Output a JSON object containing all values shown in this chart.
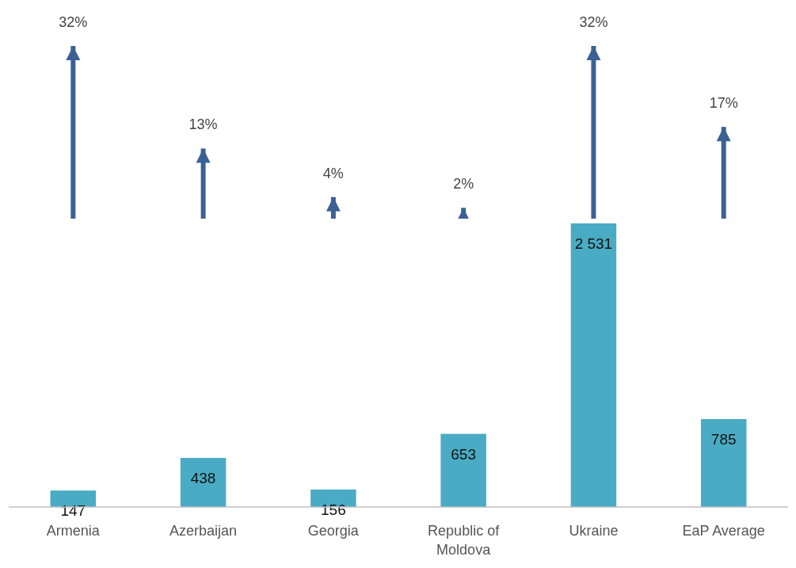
{
  "chart_data": [
    {
      "type": "bar",
      "categories": [
        null,
        null,
        null,
        null,
        null,
        null
      ],
      "tick_labels": false,
      "series": [
        {
          "color": "#3b6194",
          "values": [
            32,
            13,
            4,
            2,
            32,
            17
          ],
          "value_labels": [
            "32%",
            "13%",
            "4%",
            "2%",
            "32%",
            "17%"
          ]
        }
      ]
    },
    {
      "type": "bar",
      "categories": [
        "Armenia",
        "Azerbaijan",
        "Georgia",
        "Republic of Moldova",
        "Ukraine",
        "EaP Average"
      ],
      "series": [
        {
          "color": "#4aabc4",
          "values": [
            147,
            438,
            156,
            653,
            2531,
            785
          ],
          "value_labels": [
            "147",
            "438",
            "156",
            "653",
            "2 531",
            "785"
          ]
        }
      ]
    }
  ]
}
